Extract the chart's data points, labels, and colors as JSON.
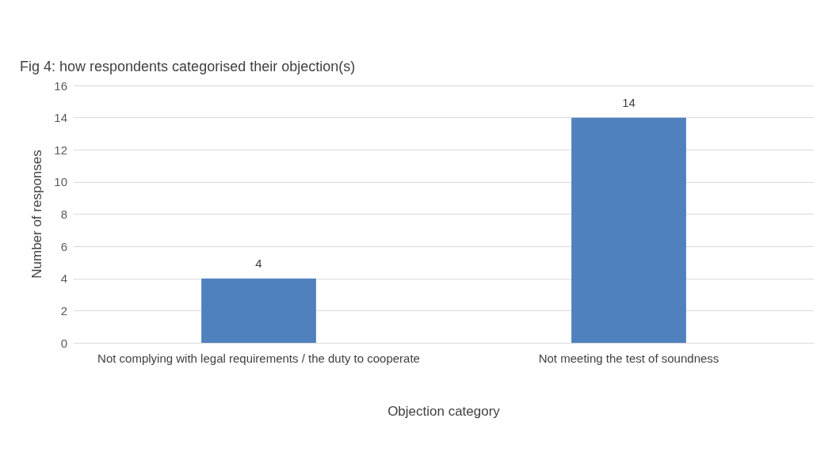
{
  "chart_data": {
    "type": "bar",
    "title": "Fig 4: how respondents categorised their objection(s)",
    "xlabel": "Objection category",
    "ylabel": "Number of responses",
    "categories": [
      "Not complying with legal requirements / the duty to cooperate",
      "Not meeting the test of soundness"
    ],
    "values": [
      4,
      14
    ],
    "color": "#4f81bd",
    "ylim": [
      0,
      16
    ],
    "yticks": [
      0,
      2,
      4,
      6,
      8,
      10,
      12,
      14,
      16
    ],
    "grid": "y",
    "data_labels": true
  }
}
